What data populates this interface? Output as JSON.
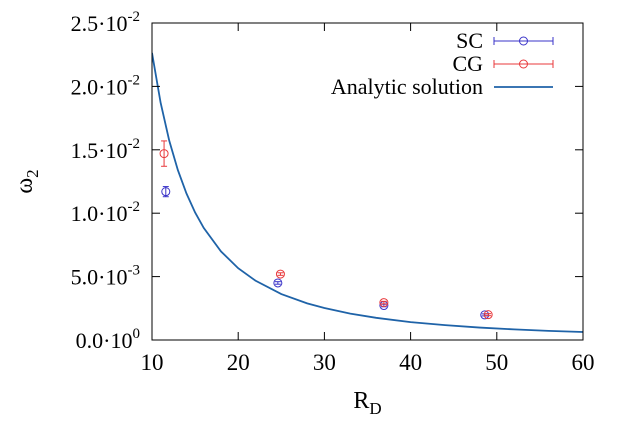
{
  "chart_data": {
    "type": "scatter",
    "xlabel": "R",
    "xlabel_sub": "D",
    "ylabel": "ω",
    "ylabel_sub": "2",
    "xlim": [
      10,
      60
    ],
    "ylim": [
      0,
      0.025
    ],
    "grid": false,
    "legend_position": "top-right",
    "x_ticks": [
      {
        "value": 10,
        "label": "10"
      },
      {
        "value": 20,
        "label": "20"
      },
      {
        "value": 30,
        "label": "30"
      },
      {
        "value": 40,
        "label": "40"
      },
      {
        "value": 50,
        "label": "50"
      },
      {
        "value": 60,
        "label": "60"
      }
    ],
    "y_ticks": [
      {
        "value": 0,
        "mantissa": "0.0",
        "exponent": "0"
      },
      {
        "value": 0.005,
        "mantissa": "5.0",
        "exponent": "-3"
      },
      {
        "value": 0.01,
        "mantissa": "1.0",
        "exponent": "-2"
      },
      {
        "value": 0.015,
        "mantissa": "1.5",
        "exponent": "-2"
      },
      {
        "value": 0.02,
        "mantissa": "2.0",
        "exponent": "-2"
      },
      {
        "value": 0.025,
        "mantissa": "2.5",
        "exponent": "-2"
      }
    ],
    "series": [
      {
        "name": "SC",
        "kind": "points-errorbars",
        "color": "#3a33c8",
        "points": [
          {
            "x": 11.6,
            "y": 0.0117,
            "err": 0.0004
          },
          {
            "x": 24.6,
            "y": 0.0045,
            "err": 0.0001
          },
          {
            "x": 36.9,
            "y": 0.00272,
            "err": 0.0001
          },
          {
            "x": 48.6,
            "y": 0.00198,
            "err": 8e-05
          }
        ]
      },
      {
        "name": "CG",
        "kind": "points-errorbars",
        "color": "#e8383b",
        "points": [
          {
            "x": 11.4,
            "y": 0.0147,
            "err": 0.001
          },
          {
            "x": 24.9,
            "y": 0.0052,
            "err": 0.0001
          },
          {
            "x": 36.9,
            "y": 0.00295,
            "err": 0.0001
          },
          {
            "x": 49.0,
            "y": 0.002,
            "err": 8e-05
          }
        ]
      },
      {
        "name": "Analytic solution",
        "kind": "line",
        "color": "#1f63a8",
        "x": [
          10,
          11,
          12,
          13,
          14,
          15,
          16,
          18,
          20,
          22,
          25,
          28,
          30,
          33,
          36,
          40,
          44,
          48,
          52,
          56,
          60
        ],
        "y": [
          0.02264,
          0.01871,
          0.01572,
          0.0134,
          0.01155,
          0.01006,
          0.00884,
          0.00699,
          0.00566,
          0.00468,
          0.00362,
          0.00289,
          0.00252,
          0.00208,
          0.00175,
          0.00141,
          0.00117,
          0.00098,
          0.00084,
          0.00072,
          0.00063
        ]
      }
    ]
  }
}
